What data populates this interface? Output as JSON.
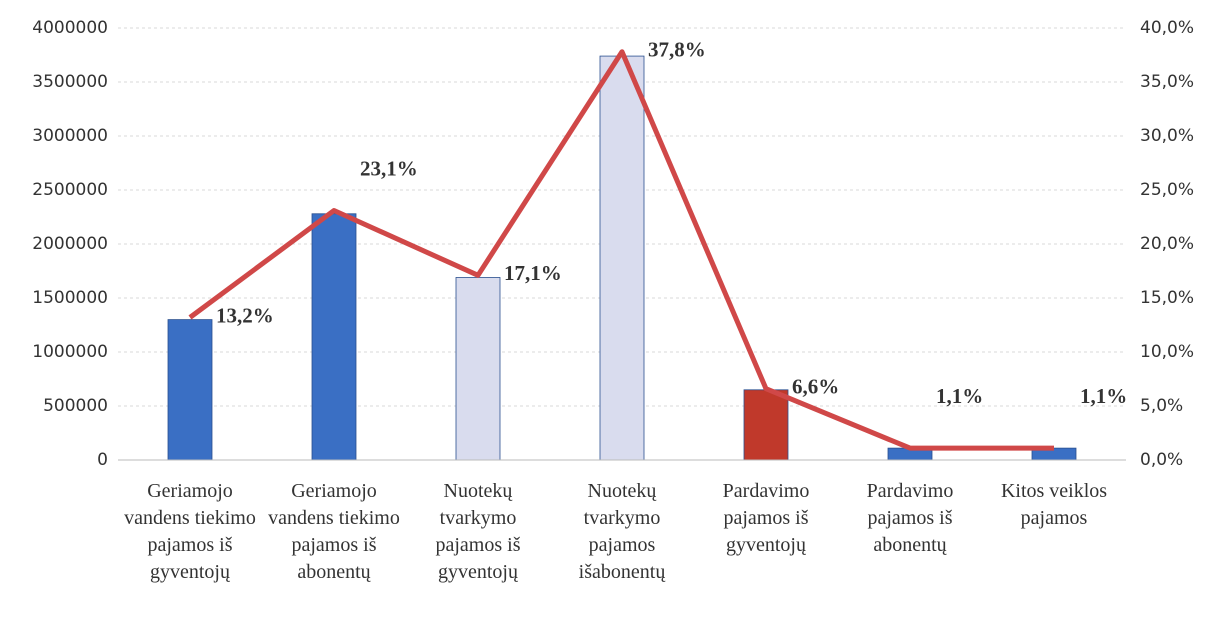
{
  "chart_data": {
    "type": "bar",
    "categories": [
      "Geriamojo vandens tiekimo pajamos iš gyventojų",
      "Geriamojo vandens tiekimo pajamos iš abonentų",
      "Nuotekų tvarkymo pajamos iš gyventojų",
      "Nuotekų tvarkymo pajamos išabonentų",
      "Pardavimo pajamos iš gyventojų",
      "Pardavimo pajamos iš abonentų",
      "Kitos veiklos pajamos"
    ],
    "series": [
      {
        "type": "bar",
        "values": [
          1300000,
          2280000,
          1690000,
          3740000,
          650000,
          110000,
          110000
        ],
        "colors": [
          "#3a6fc4",
          "#3a6fc4",
          "#d9dcee",
          "#d9dcee",
          "#c0392b",
          "#3a6fc4",
          "#3a6fc4"
        ]
      },
      {
        "type": "line",
        "axis": "y2",
        "color": "#d04848",
        "values": [
          13.2,
          23.1,
          17.1,
          37.8,
          6.6,
          1.1,
          1.1
        ],
        "value_labels": [
          "13,2%",
          "23,1%",
          "17,1%",
          "37,8%",
          "6,6%",
          "1,1%",
          "1,1%"
        ]
      }
    ],
    "ylim": [
      0,
      4000000
    ],
    "yticks": [
      0,
      500000,
      1000000,
      1500000,
      2000000,
      2500000,
      3000000,
      3500000,
      4000000
    ],
    "y2lim": [
      0,
      40
    ],
    "y2ticks": [
      {
        "value": 0,
        "label": "0,0%"
      },
      {
        "value": 5,
        "label": "5,0%"
      },
      {
        "value": 10,
        "label": "10,0%"
      },
      {
        "value": 15,
        "label": "15,0%"
      },
      {
        "value": 20,
        "label": "20,0%"
      },
      {
        "value": 25,
        "label": "25,0%"
      },
      {
        "value": 30,
        "label": "30,0%"
      },
      {
        "value": 35,
        "label": "35,0%"
      },
      {
        "value": 40,
        "label": "40,0%"
      }
    ],
    "grid": true
  }
}
